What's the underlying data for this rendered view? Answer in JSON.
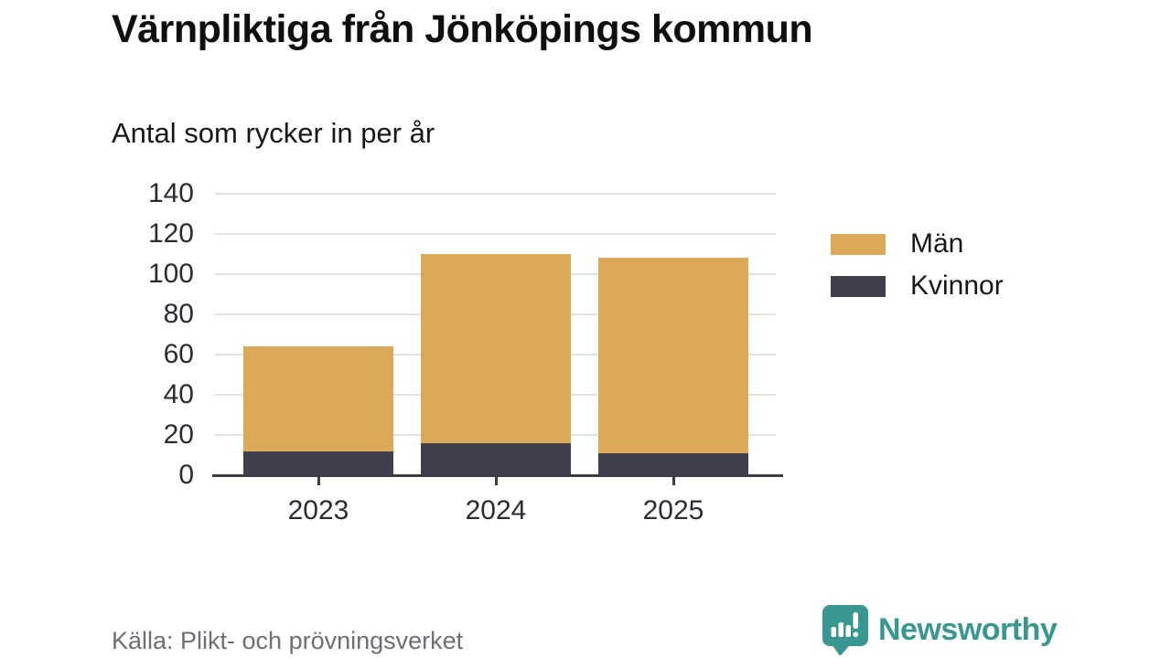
{
  "header": {
    "title": "Värnpliktiga från Jönköpings kommun",
    "subtitle": "Antal som rycker in per år"
  },
  "chart_data": {
    "type": "bar",
    "stacked": true,
    "title": "Värnpliktiga från Jönköpings kommun",
    "subtitle": "Antal som rycker in per år",
    "categories": [
      "2023",
      "2024",
      "2025"
    ],
    "series": [
      {
        "name": "Män",
        "color": "#dca958",
        "values": [
          52,
          94,
          97
        ]
      },
      {
        "name": "Kvinnor",
        "color": "#413e4e",
        "values": [
          12,
          16,
          11
        ]
      }
    ],
    "stack_order_bottom_to_top": [
      "Kvinnor",
      "Män"
    ],
    "totals": [
      64,
      110,
      108
    ],
    "ylim": [
      0,
      140
    ],
    "yticks": [
      0,
      20,
      40,
      60,
      80,
      100,
      120,
      140
    ],
    "xlabel": "",
    "ylabel": "Antal som rycker in per år",
    "grid": true,
    "legend_position": "right",
    "gridline_color": "#e2e2e2",
    "axis_color": "#3e3b48"
  },
  "footer": {
    "source": "Källa: Plikt- och prövningsverket",
    "brand": {
      "name": "Newsworthy",
      "color": "#399792",
      "logo_icon": "speech-bubble-bar-chart-icon"
    }
  }
}
